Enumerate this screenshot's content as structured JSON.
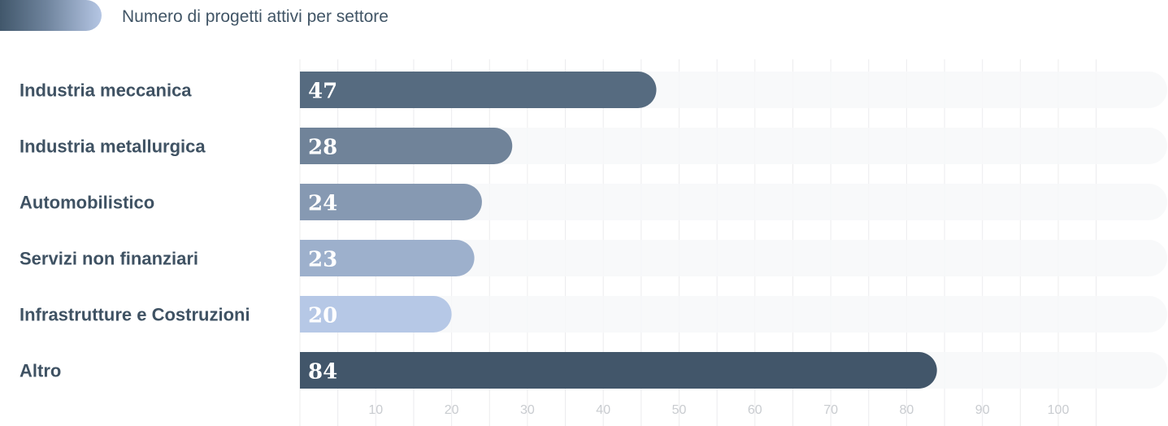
{
  "legend": {
    "label": "Numero di progetti attivi per settore"
  },
  "colors": {
    "track": "#f7f8f9",
    "grid": "#ececee",
    "bars": [
      "#566b80",
      "#708399",
      "#8699b2",
      "#9db0cc",
      "#b6c8e6",
      "#42566a"
    ]
  },
  "chart_data": {
    "type": "bar",
    "orientation": "horizontal",
    "categories": [
      "Industria meccanica",
      "Industria metallurgica",
      "Automobilistico",
      "Servizi non finanziari",
      "Infrastrutture e Costruzioni",
      "Altro"
    ],
    "values": [
      47,
      28,
      24,
      23,
      20,
      84
    ],
    "data_labels": [
      "47",
      "28",
      "24",
      "23",
      "20",
      "84"
    ],
    "xlim": [
      0,
      115
    ],
    "x_ticks": [
      10,
      20,
      30,
      40,
      50,
      60,
      70,
      80,
      90,
      100
    ],
    "grid": true,
    "legend_position": "top-left"
  }
}
